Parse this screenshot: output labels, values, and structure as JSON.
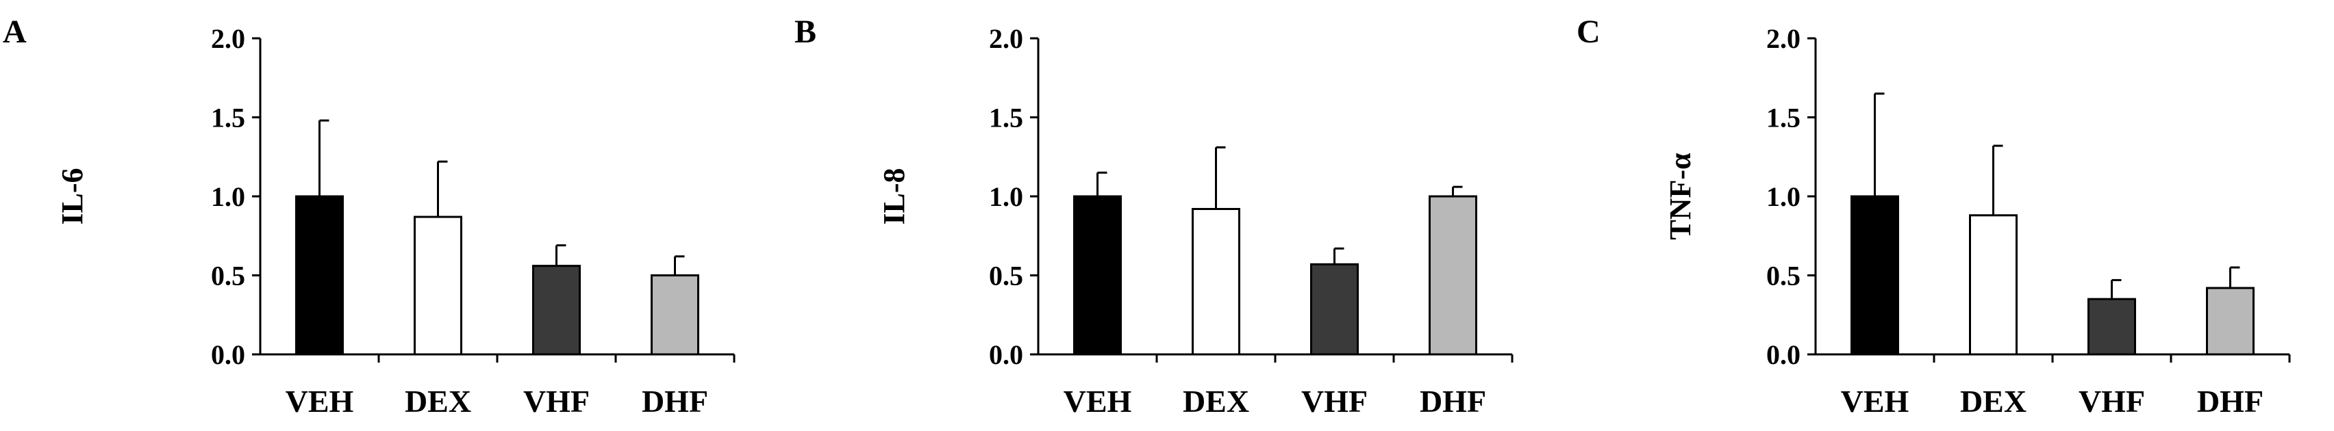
{
  "chart_data": [
    {
      "type": "bar",
      "panel": "A",
      "ylabel": "IL-6",
      "categories": [
        "VEH",
        "DEX",
        "VHF",
        "DHF"
      ],
      "values": [
        1.0,
        0.87,
        0.56,
        0.5
      ],
      "errors": [
        0.48,
        0.35,
        0.13,
        0.12
      ],
      "ylim": [
        0,
        2.0
      ],
      "yticks": [
        "0.0",
        "0.5",
        "1.0",
        "1.5",
        "2.0"
      ],
      "colors": [
        "#000000",
        "#ffffff",
        "#3a3a3a",
        "#b8b8b8"
      ]
    },
    {
      "type": "bar",
      "panel": "B",
      "ylabel": "IL-8",
      "categories": [
        "VEH",
        "DEX",
        "VHF",
        "DHF"
      ],
      "values": [
        1.0,
        0.92,
        0.57,
        1.0
      ],
      "errors": [
        0.15,
        0.39,
        0.1,
        0.06
      ],
      "ylim": [
        0,
        2.0
      ],
      "yticks": [
        "0.0",
        "0.5",
        "1.0",
        "1.5",
        "2.0"
      ],
      "colors": [
        "#000000",
        "#ffffff",
        "#3a3a3a",
        "#b8b8b8"
      ]
    },
    {
      "type": "bar",
      "panel": "C",
      "ylabel": "TNF-α",
      "categories": [
        "VEH",
        "DEX",
        "VHF",
        "DHF"
      ],
      "values": [
        1.0,
        0.88,
        0.35,
        0.42
      ],
      "errors": [
        0.65,
        0.44,
        0.12,
        0.13
      ],
      "ylim": [
        0,
        2.0
      ],
      "yticks": [
        "0.0",
        "0.5",
        "1.0",
        "1.5",
        "2.0"
      ],
      "colors": [
        "#000000",
        "#ffffff",
        "#3a3a3a",
        "#b8b8b8"
      ]
    }
  ]
}
